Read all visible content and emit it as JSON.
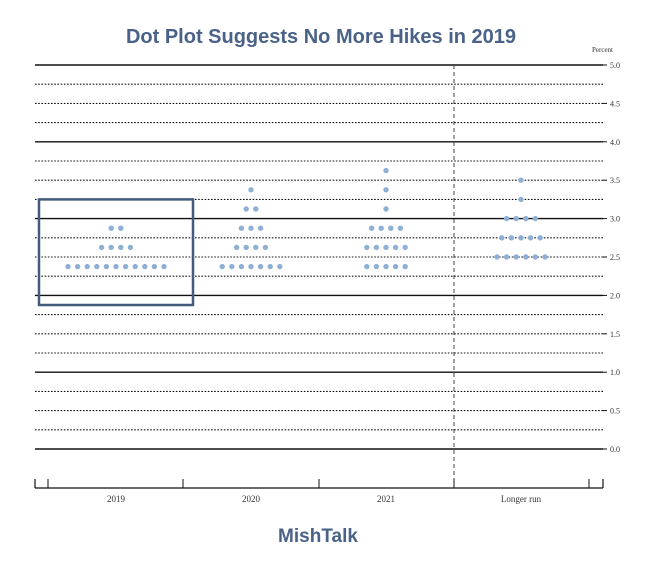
{
  "title": "Dot Plot Suggests No More Hikes in 2019",
  "footer": "MishTalk",
  "chart_data": {
    "type": "scatter",
    "title": "Dot Plot Suggests No More Hikes in 2019",
    "ylabel": "Percent",
    "ylim": [
      0,
      5
    ],
    "yticks": [
      "5.0",
      "4.5",
      "4.0",
      "3.5",
      "3.0",
      "2.5",
      "2.0",
      "1.5",
      "1.0",
      "0.5",
      "0.0"
    ],
    "categories": [
      "2019",
      "2020",
      "2021",
      "Longer run"
    ],
    "dots": [
      {
        "category": "2019",
        "y": 2.875,
        "count": 2
      },
      {
        "category": "2019",
        "y": 2.625,
        "count": 4
      },
      {
        "category": "2019",
        "y": 2.375,
        "count": 11
      },
      {
        "category": "2020",
        "y": 3.375,
        "count": 1
      },
      {
        "category": "2020",
        "y": 3.125,
        "count": 2
      },
      {
        "category": "2020",
        "y": 2.875,
        "count": 3
      },
      {
        "category": "2020",
        "y": 2.625,
        "count": 4
      },
      {
        "category": "2020",
        "y": 2.375,
        "count": 7
      },
      {
        "category": "2021",
        "y": 3.625,
        "count": 1
      },
      {
        "category": "2021",
        "y": 3.375,
        "count": 1
      },
      {
        "category": "2021",
        "y": 3.125,
        "count": 1
      },
      {
        "category": "2021",
        "y": 2.875,
        "count": 4
      },
      {
        "category": "2021",
        "y": 2.625,
        "count": 5
      },
      {
        "category": "2021",
        "y": 2.375,
        "count": 5
      },
      {
        "category": "Longer run",
        "y": 3.5,
        "count": 1
      },
      {
        "category": "Longer run",
        "y": 3.25,
        "count": 1
      },
      {
        "category": "Longer run",
        "y": 3.0,
        "count": 4
      },
      {
        "category": "Longer run",
        "y": 2.75,
        "count": 5
      },
      {
        "category": "Longer run",
        "y": 2.5,
        "count": 6
      }
    ],
    "highlight": {
      "category": "2019",
      "y_range": [
        1.875,
        3.25
      ]
    },
    "divider_between": [
      "2021",
      "Longer run"
    ],
    "colors": {
      "dot": "#8fb0d4",
      "highlight_box": "#435b7d",
      "title": "#4a6288"
    }
  }
}
